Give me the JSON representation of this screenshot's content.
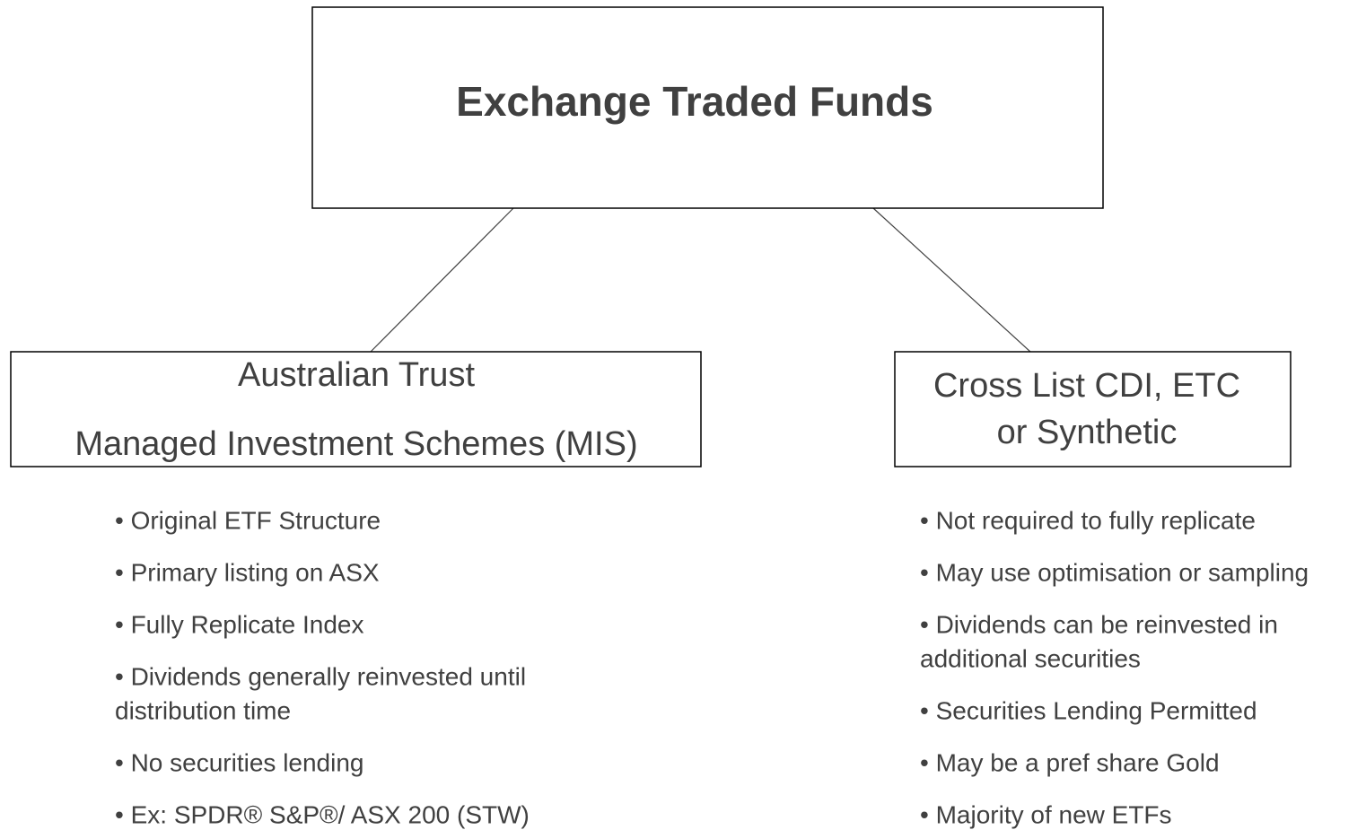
{
  "title": "Exchange Traded Funds",
  "branches": [
    {
      "label": [
        "Australian Trust",
        "Managed Investment Schemes (MIS)"
      ],
      "bullets": [
        [
          "• Original ETF Structure"
        ],
        [
          "• Primary listing on ASX"
        ],
        [
          "• Fully Replicate Index"
        ],
        [
          "• Dividends generally reinvested until",
          "distribution time"
        ],
        [
          "• No securities lending"
        ],
        [
          "• Ex: SPDR® S&P®/ ASX 200 (STW)"
        ]
      ]
    },
    {
      "label": [
        "Cross List CDI, ETC",
        "or Synthetic"
      ],
      "bullets": [
        [
          "• Not required to fully replicate"
        ],
        [
          "• May use optimisation or sampling"
        ],
        [
          "• Dividends can be reinvested in",
          "additional securities"
        ],
        [
          "• Securities Lending Permitted"
        ],
        [
          "• May be a pref share Gold"
        ],
        [
          "• Majority of new ETFs"
        ]
      ]
    }
  ]
}
